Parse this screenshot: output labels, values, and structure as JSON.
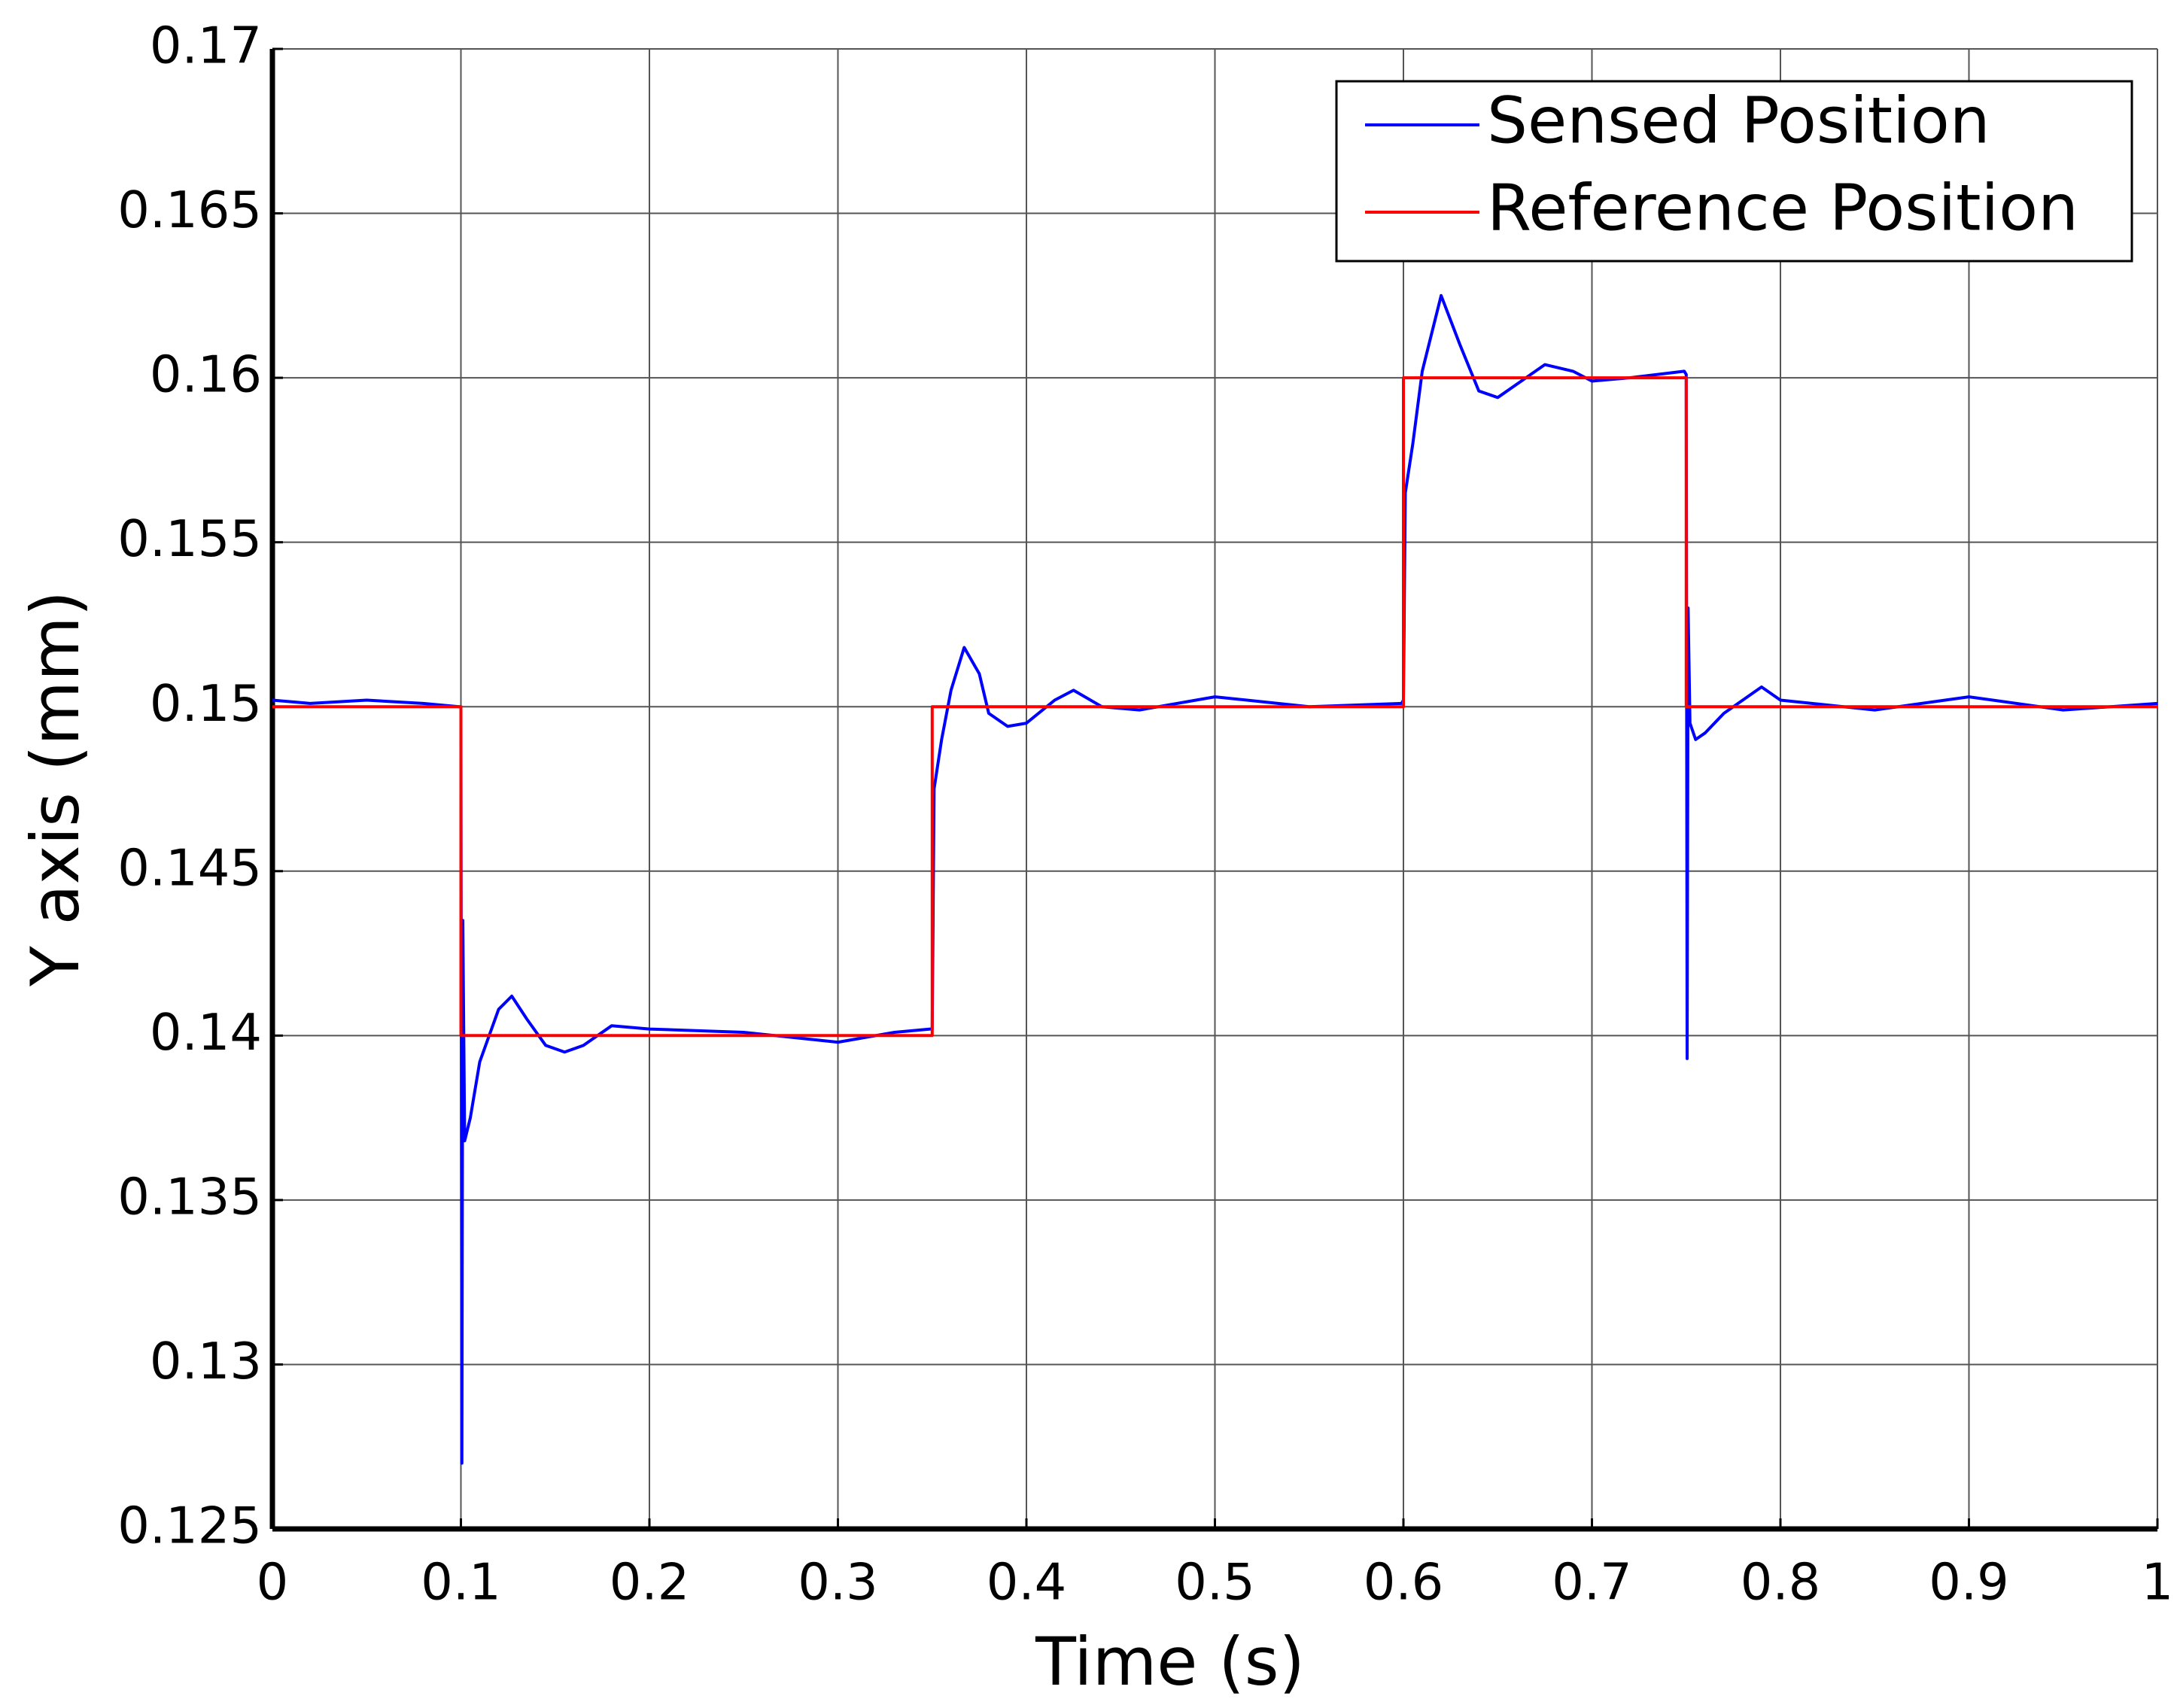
{
  "chart_data": {
    "type": "line",
    "x_label": "Time (s)",
    "y_label": "Y axis (mm)",
    "xlim": [
      0,
      1
    ],
    "ylim": [
      0.125,
      0.17
    ],
    "xticks": [
      0,
      0.1,
      0.2,
      0.3,
      0.4,
      0.5,
      0.6,
      0.7,
      0.8,
      0.9,
      1
    ],
    "yticks": [
      0.125,
      0.13,
      0.135,
      0.14,
      0.145,
      0.15,
      0.155,
      0.16,
      0.165,
      0.17
    ],
    "grid": true,
    "legend": "upper right",
    "series": [
      {
        "name": "Sensed Position",
        "color": "#0000ff",
        "x": [
          0,
          0.02,
          0.05,
          0.08,
          0.099,
          0.1,
          0.1005,
          0.101,
          0.102,
          0.105,
          0.11,
          0.12,
          0.127,
          0.135,
          0.145,
          0.155,
          0.165,
          0.18,
          0.2,
          0.25,
          0.3,
          0.33,
          0.349,
          0.35,
          0.351,
          0.355,
          0.36,
          0.367,
          0.375,
          0.38,
          0.39,
          0.4,
          0.415,
          0.425,
          0.44,
          0.46,
          0.5,
          0.55,
          0.599,
          0.6,
          0.601,
          0.605,
          0.61,
          0.62,
          0.63,
          0.64,
          0.65,
          0.66,
          0.675,
          0.69,
          0.7,
          0.72,
          0.749,
          0.75,
          0.7505,
          0.751,
          0.752,
          0.755,
          0.76,
          0.77,
          0.79,
          0.8,
          0.85,
          0.9,
          0.95,
          1
        ],
        "values": [
          0.1502,
          0.1501,
          0.1502,
          0.1501,
          0.15,
          0.15,
          0.127,
          0.1435,
          0.1368,
          0.1375,
          0.1392,
          0.1408,
          0.1412,
          0.1405,
          0.1397,
          0.1395,
          0.1397,
          0.1403,
          0.1402,
          0.1401,
          0.1398,
          0.1401,
          0.1402,
          0.1402,
          0.1475,
          0.149,
          0.1505,
          0.1518,
          0.151,
          0.1498,
          0.1494,
          0.1495,
          0.1502,
          0.1505,
          0.15,
          0.1499,
          0.1503,
          0.15,
          0.1501,
          0.1502,
          0.1565,
          0.158,
          0.1602,
          0.1625,
          0.161,
          0.1596,
          0.1594,
          0.1598,
          0.1604,
          0.1602,
          0.1599,
          0.16,
          0.1602,
          0.1601,
          0.1393,
          0.153,
          0.1495,
          0.149,
          0.1492,
          0.1498,
          0.1506,
          0.1502,
          0.1499,
          0.1503,
          0.1499,
          0.1501
        ]
      },
      {
        "name": "Reference Position",
        "color": "#ff0000",
        "x": [
          0,
          0.1,
          0.1,
          0.35,
          0.35,
          0.6,
          0.6,
          0.75,
          0.75,
          1
        ],
        "values": [
          0.15,
          0.15,
          0.14,
          0.14,
          0.15,
          0.15,
          0.16,
          0.16,
          0.15,
          0.15
        ]
      }
    ]
  }
}
